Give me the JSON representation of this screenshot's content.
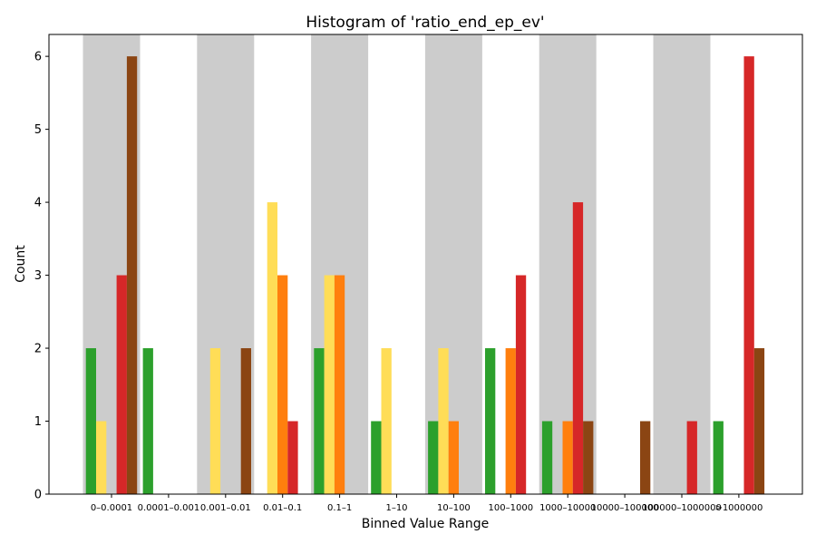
{
  "chart_data": {
    "type": "bar",
    "title": "Histogram of 'ratio_end_ep_ev'",
    "xlabel": "Binned Value Range",
    "ylabel": "Count",
    "ylim": [
      0,
      6.3
    ],
    "yticks": [
      0,
      1,
      2,
      3,
      4,
      5,
      6
    ],
    "grid": false,
    "legend": "none",
    "background_bands": "alternating gray shading behind every other bin group",
    "categories": [
      "0–0.0001",
      "0.0001–0.001",
      "0.001–0.01",
      "0.01–0.1",
      "0.1–1",
      "1–10",
      "10–100",
      "100–1000",
      "1000–10000",
      "10000–100000",
      "100000–1000000",
      ">1000000"
    ],
    "series": [
      {
        "color": "#2ca02c",
        "values": [
          2,
          2,
          0,
          0,
          2,
          1,
          1,
          2,
          1,
          0,
          0,
          1
        ]
      },
      {
        "color": "#ffdd57",
        "values": [
          1,
          0,
          2,
          4,
          3,
          2,
          2,
          0,
          0,
          0,
          0,
          0
        ]
      },
      {
        "color": "#ff7f0e",
        "values": [
          0,
          0,
          0,
          3,
          3,
          0,
          1,
          2,
          1,
          0,
          0,
          0
        ]
      },
      {
        "color": "#d62728",
        "values": [
          3,
          0,
          0,
          1,
          0,
          0,
          0,
          3,
          4,
          0,
          1,
          6
        ]
      },
      {
        "color": "#8b4513",
        "values": [
          6,
          0,
          2,
          0,
          0,
          0,
          0,
          0,
          1,
          1,
          0,
          2
        ]
      }
    ]
  }
}
